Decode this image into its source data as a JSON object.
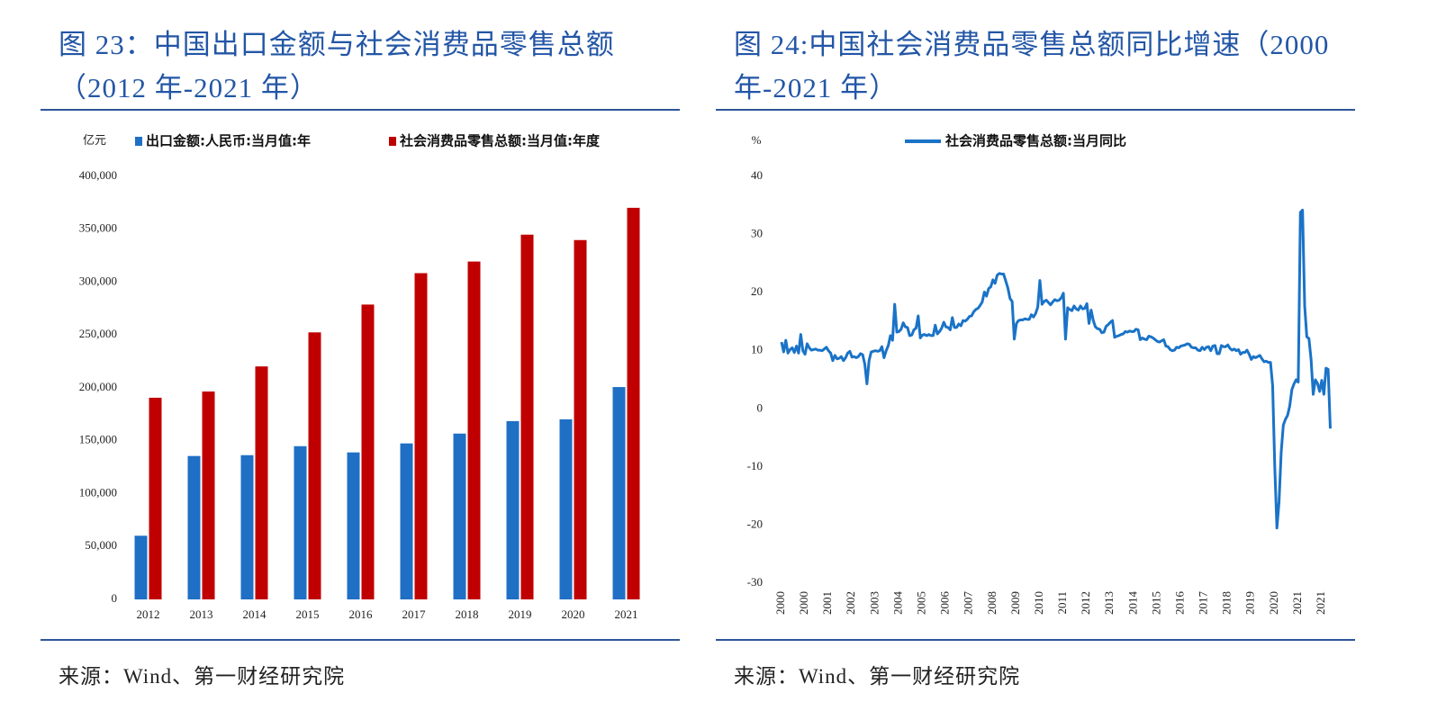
{
  "chart_data": [
    {
      "type": "bar",
      "title": "图 23：中国出口金额与社会消费品零售总额（2012 年-2021 年）",
      "y_unit": "亿元",
      "source": "来源：Wind、第一财经研究院",
      "categories": [
        "2012",
        "2013",
        "2014",
        "2015",
        "2016",
        "2017",
        "2018",
        "2019",
        "2020",
        "2021"
      ],
      "series": [
        {
          "name": "出口金额:人民币:当月值:年",
          "color": "#1f6fc5",
          "values": [
            60200,
            135600,
            136400,
            144900,
            139000,
            147500,
            156800,
            168600,
            170300,
            200800
          ]
        },
        {
          "name": "社会消费品零售总额:当月值:年度",
          "color": "#c00000",
          "values": [
            190700,
            196600,
            220300,
            252500,
            278800,
            308500,
            319500,
            344900,
            339800,
            370300
          ]
        }
      ],
      "ylim": [
        0,
        400000
      ],
      "yticks": [
        0,
        {
          "value": 50000,
          "label": "50,000"
        },
        {
          "value": 100000,
          "label": "100,000"
        },
        {
          "value": 150000,
          "label": "150,000"
        },
        {
          "value": 200000,
          "label": "200,000"
        },
        {
          "value": 250000,
          "label": "250,000"
        },
        {
          "value": 300000,
          "label": "300,000"
        },
        {
          "value": 350000,
          "label": "350,000"
        },
        {
          "value": 400000,
          "label": "400,000"
        }
      ],
      "grid": false
    },
    {
      "type": "line",
      "title": "图 24:中国社会消费品零售总额同比增速（2000 年-2021 年）",
      "y_unit": "%",
      "source": "来源：Wind、第一财经研究院",
      "categories": [
        "2000",
        null,
        null,
        null,
        null,
        null,
        null,
        null,
        null,
        null,
        null,
        "2000",
        null,
        null,
        null,
        null,
        null,
        null,
        null,
        null,
        null,
        null,
        "2001",
        null,
        null,
        null,
        null,
        null,
        null,
        null,
        null,
        null,
        null,
        "2002",
        null,
        null,
        null,
        null,
        null,
        null,
        null,
        null,
        null,
        null,
        "2003",
        null,
        null,
        null,
        null,
        null,
        null,
        null,
        null,
        null,
        null,
        "2004",
        null,
        null,
        null,
        null,
        null,
        null,
        null,
        null,
        null,
        null,
        "2005",
        null,
        null,
        null,
        null,
        null,
        null,
        null,
        null,
        null,
        null,
        "2006",
        null,
        null,
        null,
        null,
        null,
        null,
        null,
        null,
        null,
        null,
        "2007",
        null,
        null,
        null,
        null,
        null,
        null,
        null,
        null,
        null,
        null,
        "2008",
        null,
        null,
        null,
        null,
        null,
        null,
        null,
        null,
        null,
        null,
        "2009",
        null,
        null,
        null,
        null,
        null,
        null,
        null,
        null,
        null,
        null,
        "2010",
        null,
        null,
        null,
        null,
        null,
        null,
        null,
        null,
        null,
        null,
        "2011",
        null,
        null,
        null,
        null,
        null,
        null,
        null,
        null,
        null,
        null,
        "2012",
        null,
        null,
        null,
        null,
        null,
        null,
        null,
        null,
        null,
        null,
        "2013",
        null,
        null,
        null,
        null,
        null,
        null,
        null,
        null,
        null,
        null,
        "2014",
        null,
        null,
        null,
        null,
        null,
        null,
        null,
        null,
        null,
        null,
        "2015",
        null,
        null,
        null,
        null,
        null,
        null,
        null,
        null,
        null,
        null,
        "2016",
        null,
        null,
        null,
        null,
        null,
        null,
        null,
        null,
        null,
        null,
        "2017",
        null,
        null,
        null,
        null,
        null,
        null,
        null,
        null,
        null,
        null,
        "2018",
        null,
        null,
        null,
        null,
        null,
        null,
        null,
        null,
        null,
        null,
        "2019",
        null,
        null,
        null,
        null,
        null,
        null,
        null,
        null,
        null,
        null,
        "2020",
        null,
        null,
        null,
        null,
        null,
        null,
        null,
        null,
        null,
        null,
        "2021",
        null,
        null,
        null,
        null,
        null,
        null,
        null,
        null,
        null,
        null,
        "2021",
        null,
        null,
        null,
        null
      ],
      "series": [
        {
          "name": "社会消费品零售总额:当月同比",
          "color": "#1a73c7",
          "values": [
            11.5,
            9.8,
            11.8,
            9.6,
            10.2,
            10.5,
            9.7,
            10.8,
            9.6,
            12.8,
            10.0,
            9.4,
            11.2,
            10.5,
            10.1,
            10.2,
            10.3,
            10.1,
            10.1,
            10.0,
            10.3,
            10.6,
            10.0,
            9.6,
            8.3,
            9.2,
            8.6,
            8.7,
            9.0,
            8.3,
            8.8,
            9.6,
            9.9,
            8.9,
            9.0,
            8.8,
            9.0,
            9.5,
            9.3,
            7.7,
            4.3,
            8.3,
            9.8,
            9.9,
            10.0,
            9.9,
            10.0,
            10.7,
            8.8,
            10.0,
            10.9,
            12.6,
            11.8,
            18.0,
            13.2,
            13.3,
            13.7,
            14.8,
            14.1,
            14.0,
            12.6,
            12.7,
            13.6,
            13.9,
            16.0,
            12.2,
            12.7,
            12.8,
            12.6,
            12.8,
            12.6,
            12.6,
            14.4,
            12.9,
            13.3,
            13.9,
            14.9,
            14.1,
            14.0,
            13.6,
            15.7,
            14.0,
            14.0,
            14.6,
            14.3,
            15.2,
            15.1,
            15.4,
            15.9,
            16.0,
            16.7,
            17.1,
            17.3,
            17.8,
            18.4,
            20.1,
            19.4,
            20.7,
            21.0,
            22.2,
            21.6,
            23.0,
            23.3,
            23.2,
            23.2,
            22.0,
            20.8,
            19.0,
            18.5,
            12.0,
            14.7,
            15.2,
            15.3,
            15.3,
            15.5,
            15.4,
            15.4,
            16.2,
            15.8,
            16.4,
            17.5,
            22.1,
            18.0,
            18.5,
            18.7,
            18.3,
            17.9,
            18.4,
            18.8,
            18.6,
            18.7,
            19.1,
            19.9,
            12.0,
            17.4,
            17.1,
            16.9,
            17.7,
            17.2,
            17.0,
            17.7,
            17.2,
            17.3,
            18.1,
            14.7,
            17.0,
            15.2,
            14.1,
            13.8,
            13.7,
            13.1,
            13.2,
            14.2,
            14.5,
            14.9,
            15.2,
            12.3,
            12.5,
            12.6,
            12.8,
            12.9,
            13.3,
            13.2,
            13.4,
            13.3,
            13.3,
            13.7,
            13.6,
            11.9,
            12.2,
            12.0,
            11.9,
            12.5,
            12.4,
            12.2,
            11.9,
            11.6,
            11.5,
            11.7,
            11.9,
            10.8,
            10.7,
            10.2,
            10.0,
            10.1,
            10.6,
            10.5,
            10.8,
            10.9,
            11.0,
            11.2,
            11.1,
            10.6,
            10.5,
            10.5,
            10.1,
            10.0,
            10.6,
            10.2,
            10.6,
            10.7,
            10.0,
            10.8,
            10.9,
            9.5,
            9.5,
            10.9,
            10.7,
            10.7,
            11.0,
            10.4,
            10.1,
            10.3,
            10.0,
            10.2,
            9.4,
            9.7,
            9.7,
            10.1,
            9.4,
            8.5,
            9.0,
            8.8,
            9.0,
            9.2,
            8.6,
            8.1,
            8.2,
            8.0,
            8.0,
            4.0,
            -10.0,
            -20.5,
            -16.0,
            -7.5,
            -2.8,
            -1.8,
            -1.1,
            0.5,
            3.3,
            4.3,
            5.0,
            4.6,
            33.8,
            34.2,
            17.7,
            12.4,
            12.1,
            8.5,
            2.5,
            5.0,
            4.4,
            3.0,
            4.9,
            2.5,
            7.0,
            6.8,
            -3.4
          ]
        }
      ],
      "ylim": [
        -30,
        40
      ],
      "yticks": [
        -30,
        -20,
        -10,
        0,
        10,
        20,
        30,
        40
      ],
      "grid": false
    }
  ]
}
